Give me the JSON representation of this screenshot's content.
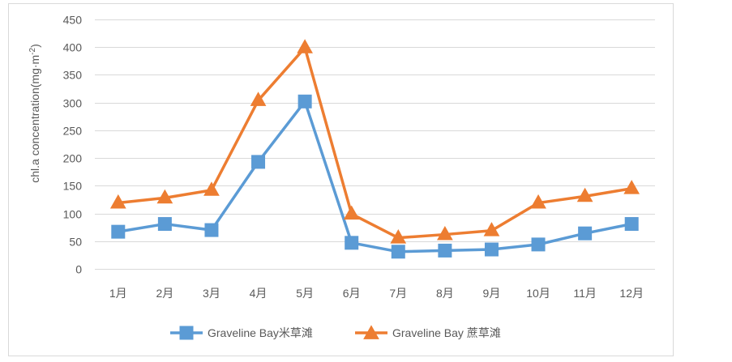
{
  "chart_data": {
    "type": "line",
    "title": "",
    "xlabel": "",
    "ylabel": "chl.a  concentration(mg·m",
    "ylabel_superscript": "-2",
    "ylabel_close": ")",
    "ylim": [
      0,
      450
    ],
    "yticks": [
      0,
      50,
      100,
      150,
      200,
      250,
      300,
      350,
      400,
      450
    ],
    "grid": true,
    "legend_position": "bottom",
    "categories": [
      "1月",
      "2月",
      "3月",
      "4月",
      "5月",
      "6月",
      "7月",
      "8月",
      "9月",
      "10月",
      "11月",
      "12月"
    ],
    "series": [
      {
        "name": "Graveline Bay米草滩",
        "marker": "square",
        "color": "#5B9BD5",
        "values": [
          67,
          81,
          70,
          193,
          302,
          47,
          31,
          33,
          35,
          44,
          64,
          81
        ]
      },
      {
        "name": "Graveline Bay 蔗草滩",
        "marker": "triangle",
        "color": "#ED7D31",
        "values": [
          119,
          128,
          142,
          304,
          399,
          99,
          56,
          62,
          69,
          119,
          131,
          145
        ]
      }
    ]
  },
  "colors": {
    "grid": "#D9D9D9",
    "frame": "#D9D9D9",
    "text": "#595959"
  }
}
